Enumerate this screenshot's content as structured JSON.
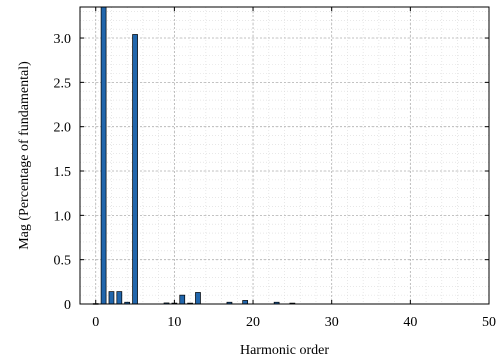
{
  "chart_data": {
    "type": "bar",
    "xlabel": "Harmonic order",
    "ylabel": "Mag (Percentage of fundamental)",
    "xlim": [
      -2,
      50
    ],
    "ylim": [
      0,
      3.35
    ],
    "x_ticks": [
      0,
      10,
      20,
      30,
      40,
      50
    ],
    "x_tick_labels": [
      "0",
      "10",
      "20",
      "30",
      "40",
      "50"
    ],
    "y_ticks": [
      0,
      0.5,
      1.0,
      1.5,
      2.0,
      2.5,
      3.0
    ],
    "y_tick_labels": [
      "0",
      "0.5",
      "1.0",
      "1.5",
      "2.0",
      "2.5",
      "3.0"
    ],
    "grid": true,
    "bar_color": "#2166ac",
    "x": [
      0,
      1,
      2,
      3,
      4,
      5,
      9,
      10,
      11,
      12,
      13,
      17,
      19,
      23,
      25
    ],
    "values": [
      0.005,
      3.35,
      0.14,
      0.14,
      0.02,
      3.04,
      0.012,
      0.01,
      0.1,
      0.01,
      0.13,
      0.02,
      0.04,
      0.02,
      0.01
    ]
  }
}
